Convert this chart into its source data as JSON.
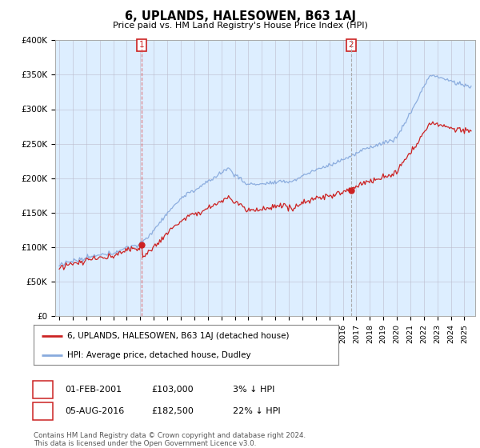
{
  "title": "6, UPLANDS, HALESOWEN, B63 1AJ",
  "subtitle": "Price paid vs. HM Land Registry's House Price Index (HPI)",
  "ylim": [
    0,
    400000
  ],
  "yticks": [
    0,
    50000,
    100000,
    150000,
    200000,
    250000,
    300000,
    350000,
    400000
  ],
  "ytick_labels": [
    "£0",
    "£50K",
    "£100K",
    "£150K",
    "£200K",
    "£250K",
    "£300K",
    "£350K",
    "£400K"
  ],
  "line_property_color": "#cc2222",
  "line_hpi_color": "#88aadd",
  "plot_bg_color": "#ddeeff",
  "marker1_x": 2001.08,
  "marker1_y": 103000,
  "marker2_x": 2016.6,
  "marker2_y": 182500,
  "vline1_color": "#dd4444",
  "vline1_style": "--",
  "vline2_color": "#aaaaaa",
  "vline2_style": "--",
  "annotation1": [
    "1",
    "01-FEB-2001",
    "£103,000",
    "3% ↓ HPI"
  ],
  "annotation2": [
    "2",
    "05-AUG-2016",
    "£182,500",
    "22% ↓ HPI"
  ],
  "legend_line1": "6, UPLANDS, HALESOWEN, B63 1AJ (detached house)",
  "legend_line2": "HPI: Average price, detached house, Dudley",
  "footer": "Contains HM Land Registry data © Crown copyright and database right 2024.\nThis data is licensed under the Open Government Licence v3.0.",
  "bg_color": "#ffffff",
  "grid_color": "#bbbbcc",
  "label_box_color": "#cc2222",
  "xlim_left": 1994.7,
  "xlim_right": 2025.8
}
